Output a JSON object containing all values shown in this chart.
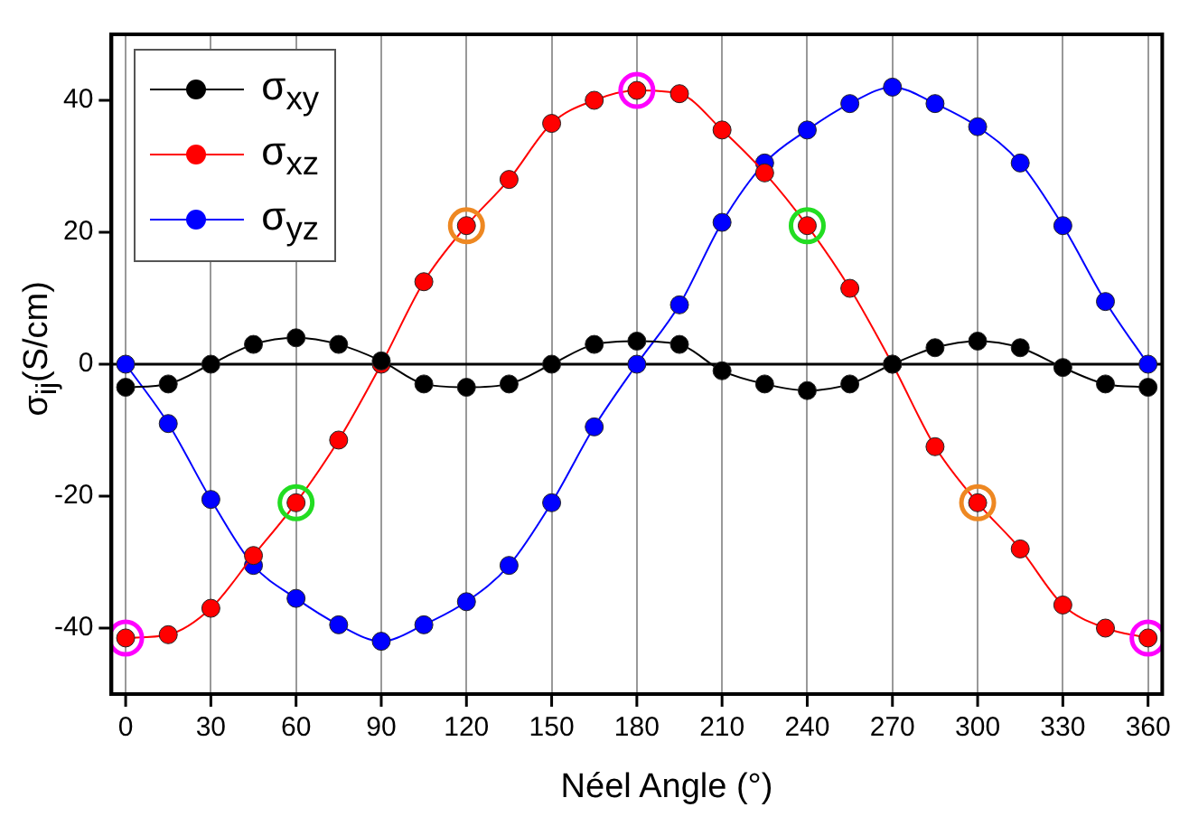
{
  "chart_data": {
    "type": "line",
    "xlabel": "Néel Angle (°)",
    "ylabel": "σ$_{ij}$(S/cm)",
    "x": [
      0,
      15,
      30,
      45,
      60,
      75,
      90,
      105,
      120,
      135,
      150,
      165,
      180,
      195,
      210,
      225,
      240,
      255,
      270,
      285,
      300,
      315,
      330,
      345,
      360
    ],
    "xlim": [
      -5,
      365
    ],
    "xticks": [
      0,
      30,
      60,
      90,
      120,
      150,
      180,
      210,
      240,
      270,
      300,
      330,
      360
    ],
    "ylim": [
      -50,
      50
    ],
    "yticks": [
      -40,
      -20,
      0,
      20,
      40
    ],
    "grid": "x",
    "legend": "top left",
    "marker": "circle",
    "line_style": "solid",
    "ref_lines": [
      {
        "axis": "y",
        "value": 0,
        "color": "#000000"
      }
    ],
    "series": [
      {
        "name": "σ$_{xy}$",
        "color": "#000000",
        "values": [
          -3.5,
          -3,
          0,
          3,
          4,
          3,
          0.5,
          -3,
          -3.5,
          -3,
          0,
          3,
          3.5,
          3,
          -1,
          -3,
          -4,
          -3,
          0,
          2.5,
          3.5,
          2.5,
          -0.5,
          -3,
          -3.5
        ]
      },
      {
        "name": "σ$_{xz}$",
        "color": "#ff0000",
        "values": [
          -41.5,
          -41,
          -37,
          -29,
          -21,
          -11.5,
          0,
          12.5,
          21,
          28,
          36.5,
          40,
          41.5,
          41,
          35.5,
          29,
          21,
          11.5,
          0,
          -12.5,
          -21,
          -28,
          -36.5,
          -40,
          -41.5
        ]
      },
      {
        "name": "σ$_{yz}$",
        "color": "#0000ff",
        "values": [
          0,
          -9,
          -20.5,
          -30.5,
          -35.5,
          -39.5,
          -42,
          -39.5,
          -36,
          -30.5,
          -21,
          -9.5,
          0,
          9,
          21.5,
          30.5,
          35.5,
          39.5,
          42,
          39.5,
          36,
          30.5,
          21,
          9.5,
          0
        ]
      },
      {
        "type": "scatter",
        "marker": "circle",
        "color": "#ff00ff",
        "x": [
          0,
          180,
          360
        ],
        "values": [
          -41.5,
          41.5,
          -41.5
        ]
      },
      {
        "type": "scatter",
        "marker": "circle",
        "color": "#ee8822",
        "x": [
          120,
          300
        ],
        "values": [
          21,
          -21
        ]
      },
      {
        "type": "scatter",
        "marker": "circle",
        "color": "#22dd22",
        "x": [
          60,
          240
        ],
        "values": [
          -21,
          21
        ]
      }
    ]
  }
}
